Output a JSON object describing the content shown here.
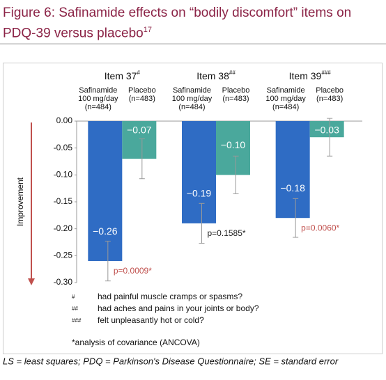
{
  "title": "Figure 6: Safinamide effects on “bodily discomfort” items on PDQ-39 versus placebo",
  "title_ref": "17",
  "chart_data": {
    "type": "bar",
    "categories": [
      "Item 37",
      "Item 38",
      "Item 39"
    ],
    "category_marks": [
      "#",
      "##",
      "###"
    ],
    "series": [
      {
        "name": "Safinamide 100 mg/day (n=484)",
        "color": "#2f6cc4",
        "values": [
          -0.26,
          -0.19,
          -0.18
        ],
        "value_labels": [
          "−0.26",
          "−0.19",
          "−0.18"
        ],
        "errors": [
          0.037,
          0.037,
          0.036
        ]
      },
      {
        "name": "Placebo (n=483)",
        "color": "#4aa89c",
        "values": [
          -0.07,
          -0.1,
          -0.03
        ],
        "value_labels": [
          "−0.07",
          "−0.10",
          "−0.03"
        ],
        "errors": [
          0.037,
          0.035,
          0.035
        ]
      }
    ],
    "annotations": [
      {
        "text": "p=0.0009*",
        "color": "#c0504d"
      },
      {
        "text": "p=0.1585*",
        "color": "#222222"
      },
      {
        "text": "p=0.0060*",
        "color": "#c0504d"
      }
    ],
    "ylabel": "Improvement",
    "ylim": [
      -0.3,
      0
    ],
    "yticks": [
      {
        "value": 0,
        "label": "0.00"
      },
      {
        "value": -0.05,
        "label": "-0.05"
      },
      {
        "value": -0.1,
        "label": "-0.10"
      },
      {
        "value": -0.15,
        "label": "-0.15"
      },
      {
        "value": -0.2,
        "label": "-0.20"
      },
      {
        "value": -0.25,
        "label": "-0.25"
      },
      {
        "value": -0.3,
        "label": "-0.30"
      }
    ],
    "grid": false
  },
  "footnotes": [
    {
      "symbol": "#",
      "text": "had painful muscle cramps or spasms?"
    },
    {
      "symbol": "##",
      "text": "had aches and pains in your joints or body?"
    },
    {
      "symbol": "###",
      "text": "felt unpleasantly hot or cold?"
    }
  ],
  "analysis_note": "*analysis of covariance (ANCOVA)",
  "caption": "LS = least squares; PDQ = Parkinson's Disease Questionnaire; SE = standard error"
}
